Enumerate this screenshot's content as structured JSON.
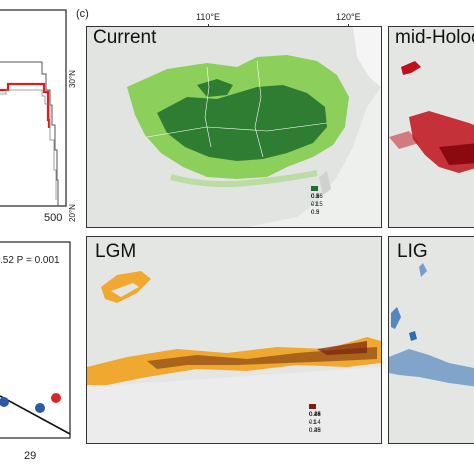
{
  "left_top": {
    "xtick": "500"
  },
  "left_bottom": {
    "stat_text": ".52  P = 0.001",
    "xtick": "29"
  },
  "panel_c": {
    "letter": "(c)",
    "lon_ticks": [
      "110°E",
      "120°E"
    ],
    "lat_ticks": [
      "30°N",
      "20°N"
    ]
  },
  "maps": [
    {
      "id": "current",
      "title": "Current",
      "legend": [
        {
          "label": "0 - 0.15",
          "color": "#d9d9d9"
        },
        {
          "label": "0.16 - 0.3",
          "color": "#8ccf5a"
        },
        {
          "label": "0.3 - 0.5",
          "color": "#4fa53a"
        },
        {
          "label": "0.5 - 1",
          "color": "#1f6e31"
        }
      ]
    },
    {
      "id": "mid-holocene",
      "title": "mid-Holoc"
    },
    {
      "id": "lgm",
      "title": "LGM",
      "legend": [
        {
          "label": "0 - 0.14",
          "color": "#d9d9d9"
        },
        {
          "label": "0.14 - 0.28",
          "color": "#f0a830"
        },
        {
          "label": "0.28 - 0.45",
          "color": "#b4781c"
        },
        {
          "label": "0.45 - 1",
          "color": "#7a2010"
        }
      ]
    },
    {
      "id": "lig",
      "title": "LIG"
    }
  ],
  "colors": {
    "current_light": "#8ccf5a",
    "current_dark": "#2e7d32",
    "mid_holocene": "#c0101a",
    "lgm_light": "#f0a830",
    "lgm_dark": "#a8641a",
    "lig": "#2f6eb5",
    "red_line": "#d32020",
    "dot_blue": "#2d5aa8",
    "dot_red": "#d62828"
  }
}
